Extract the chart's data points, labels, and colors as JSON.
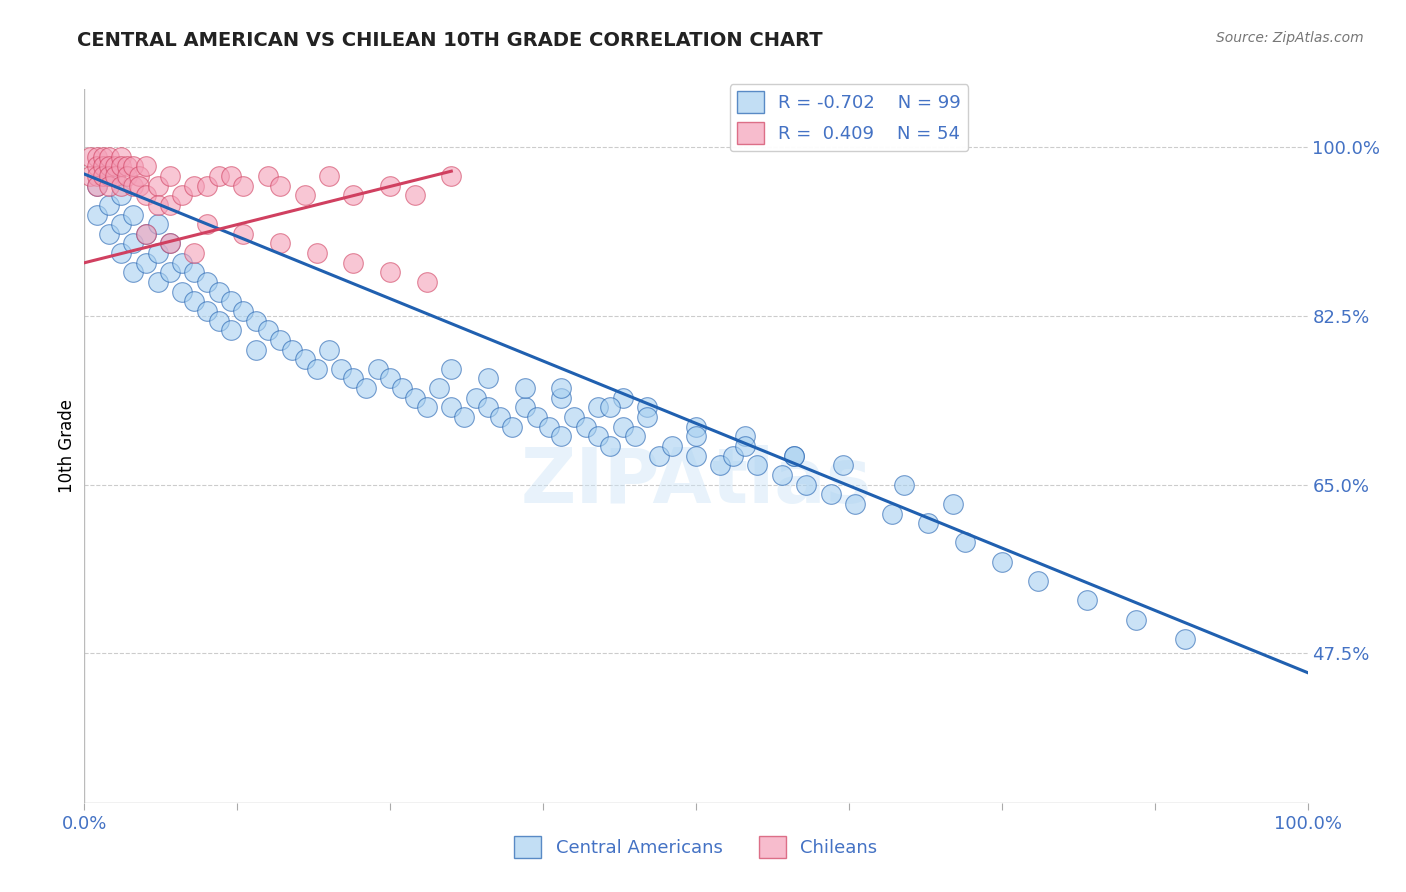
{
  "title": "CENTRAL AMERICAN VS CHILEAN 10TH GRADE CORRELATION CHART",
  "source": "Source: ZipAtlas.com",
  "ylabel": "10th Grade",
  "ytick_labels": [
    "100.0%",
    "82.5%",
    "65.0%",
    "47.5%"
  ],
  "ytick_values": [
    1.0,
    0.825,
    0.65,
    0.475
  ],
  "xlim": [
    0.0,
    1.0
  ],
  "ylim": [
    0.32,
    1.06
  ],
  "legend_r1": "R = -0.702",
  "legend_n1": "N = 99",
  "legend_r2": "R =  0.409",
  "legend_n2": "N = 54",
  "blue_color": "#a8d0f0",
  "pink_color": "#f4a0b8",
  "line_blue": "#2060b0",
  "line_pink": "#d04060",
  "axis_label_color": "#4472c4",
  "blue_line_x0": 0.0,
  "blue_line_y0": 0.972,
  "blue_line_x1": 1.0,
  "blue_line_y1": 0.455,
  "pink_line_x0": 0.0,
  "pink_line_y0": 0.88,
  "pink_line_x1": 0.3,
  "pink_line_y1": 0.975,
  "blue_scatter_x": [
    0.01,
    0.01,
    0.02,
    0.02,
    0.02,
    0.03,
    0.03,
    0.03,
    0.04,
    0.04,
    0.04,
    0.05,
    0.05,
    0.06,
    0.06,
    0.06,
    0.07,
    0.07,
    0.08,
    0.08,
    0.09,
    0.09,
    0.1,
    0.1,
    0.11,
    0.11,
    0.12,
    0.12,
    0.13,
    0.14,
    0.14,
    0.15,
    0.16,
    0.17,
    0.18,
    0.19,
    0.2,
    0.21,
    0.22,
    0.23,
    0.24,
    0.25,
    0.26,
    0.27,
    0.28,
    0.29,
    0.3,
    0.31,
    0.32,
    0.33,
    0.34,
    0.35,
    0.36,
    0.37,
    0.38,
    0.39,
    0.4,
    0.41,
    0.42,
    0.43,
    0.44,
    0.45,
    0.47,
    0.48,
    0.5,
    0.52,
    0.53,
    0.55,
    0.57,
    0.59,
    0.61,
    0.63,
    0.66,
    0.69,
    0.72,
    0.75,
    0.78,
    0.82,
    0.86,
    0.9,
    0.44,
    0.46,
    0.5,
    0.54,
    0.58,
    0.62,
    0.67,
    0.71,
    0.3,
    0.33,
    0.36,
    0.39,
    0.42,
    0.46,
    0.5,
    0.54,
    0.58,
    0.39,
    0.43
  ],
  "blue_scatter_y": [
    0.96,
    0.93,
    0.97,
    0.94,
    0.91,
    0.95,
    0.92,
    0.89,
    0.93,
    0.9,
    0.87,
    0.91,
    0.88,
    0.92,
    0.89,
    0.86,
    0.9,
    0.87,
    0.88,
    0.85,
    0.87,
    0.84,
    0.86,
    0.83,
    0.85,
    0.82,
    0.84,
    0.81,
    0.83,
    0.82,
    0.79,
    0.81,
    0.8,
    0.79,
    0.78,
    0.77,
    0.79,
    0.77,
    0.76,
    0.75,
    0.77,
    0.76,
    0.75,
    0.74,
    0.73,
    0.75,
    0.73,
    0.72,
    0.74,
    0.73,
    0.72,
    0.71,
    0.73,
    0.72,
    0.71,
    0.7,
    0.72,
    0.71,
    0.7,
    0.69,
    0.71,
    0.7,
    0.68,
    0.69,
    0.68,
    0.67,
    0.68,
    0.67,
    0.66,
    0.65,
    0.64,
    0.63,
    0.62,
    0.61,
    0.59,
    0.57,
    0.55,
    0.53,
    0.51,
    0.49,
    0.74,
    0.73,
    0.71,
    0.7,
    0.68,
    0.67,
    0.65,
    0.63,
    0.77,
    0.76,
    0.75,
    0.74,
    0.73,
    0.72,
    0.7,
    0.69,
    0.68,
    0.75,
    0.73
  ],
  "pink_scatter_x": [
    0.005,
    0.005,
    0.01,
    0.01,
    0.01,
    0.01,
    0.015,
    0.015,
    0.015,
    0.02,
    0.02,
    0.02,
    0.02,
    0.025,
    0.025,
    0.03,
    0.03,
    0.03,
    0.035,
    0.035,
    0.04,
    0.04,
    0.045,
    0.045,
    0.05,
    0.05,
    0.06,
    0.06,
    0.07,
    0.07,
    0.08,
    0.09,
    0.1,
    0.11,
    0.12,
    0.13,
    0.15,
    0.16,
    0.18,
    0.2,
    0.22,
    0.25,
    0.27,
    0.3,
    0.1,
    0.13,
    0.16,
    0.19,
    0.22,
    0.25,
    0.28,
    0.05,
    0.07,
    0.09
  ],
  "pink_scatter_y": [
    0.99,
    0.97,
    0.99,
    0.98,
    0.97,
    0.96,
    0.99,
    0.98,
    0.97,
    0.99,
    0.98,
    0.97,
    0.96,
    0.98,
    0.97,
    0.99,
    0.98,
    0.96,
    0.98,
    0.97,
    0.98,
    0.96,
    0.97,
    0.96,
    0.98,
    0.95,
    0.96,
    0.94,
    0.97,
    0.94,
    0.95,
    0.96,
    0.96,
    0.97,
    0.97,
    0.96,
    0.97,
    0.96,
    0.95,
    0.97,
    0.95,
    0.96,
    0.95,
    0.97,
    0.92,
    0.91,
    0.9,
    0.89,
    0.88,
    0.87,
    0.86,
    0.91,
    0.9,
    0.89
  ],
  "grid_color": "#cccccc",
  "background_color": "#ffffff"
}
